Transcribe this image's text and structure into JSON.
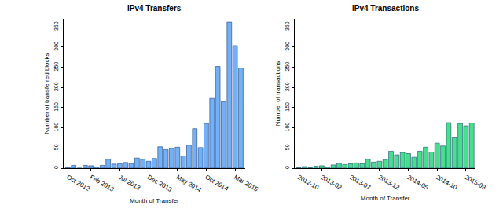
{
  "chart_data": [
    {
      "type": "bar",
      "title": "IPv4 Transfers",
      "x_label": "Month of Transfer",
      "y_label": "Number of transferred blocks",
      "categories": [
        "Oct 2012",
        null,
        null,
        null,
        "Feb 2013",
        null,
        null,
        null,
        null,
        "Jul 2013",
        null,
        null,
        null,
        null,
        "Dec 2013",
        null,
        null,
        null,
        null,
        "May 2014",
        null,
        null,
        null,
        null,
        "Oct 2014",
        null,
        null,
        null,
        null,
        "Mar 2015",
        null
      ],
      "values": [
        2,
        7,
        0,
        7,
        6,
        3,
        7,
        22,
        10,
        11,
        14,
        12,
        25,
        22,
        17,
        24,
        53,
        46,
        49,
        52,
        30,
        57,
        98,
        51,
        111,
        173,
        252,
        165,
        362,
        304,
        248
      ],
      "color": "#72b1f8",
      "ylim": [
        0,
        370
      ],
      "yticks": [
        0,
        50,
        100,
        150,
        200,
        250,
        300,
        350
      ],
      "grid": false
    },
    {
      "type": "bar",
      "title": "IPv4 Transactions",
      "x_label": "Month of Transfer",
      "y_label": "Number of transactions",
      "categories": [
        "2012-10",
        null,
        null,
        null,
        "2013-02",
        null,
        null,
        null,
        null,
        "2013-07",
        null,
        null,
        null,
        null,
        "2013-12",
        null,
        null,
        null,
        null,
        "2014-05",
        null,
        null,
        null,
        null,
        "2014-10",
        null,
        null,
        null,
        null,
        "2015-03",
        null
      ],
      "values": [
        1,
        4,
        1,
        5,
        6,
        3,
        8,
        12,
        9,
        11,
        13,
        11,
        22,
        15,
        17,
        21,
        42,
        33,
        39,
        36,
        27,
        42,
        52,
        40,
        62,
        55,
        113,
        77,
        111,
        105,
        112
      ],
      "color": "#46e08c",
      "ylim": [
        0,
        370
      ],
      "yticks": [
        0,
        50,
        100,
        150,
        200,
        250,
        300,
        350
      ],
      "grid": false
    }
  ]
}
